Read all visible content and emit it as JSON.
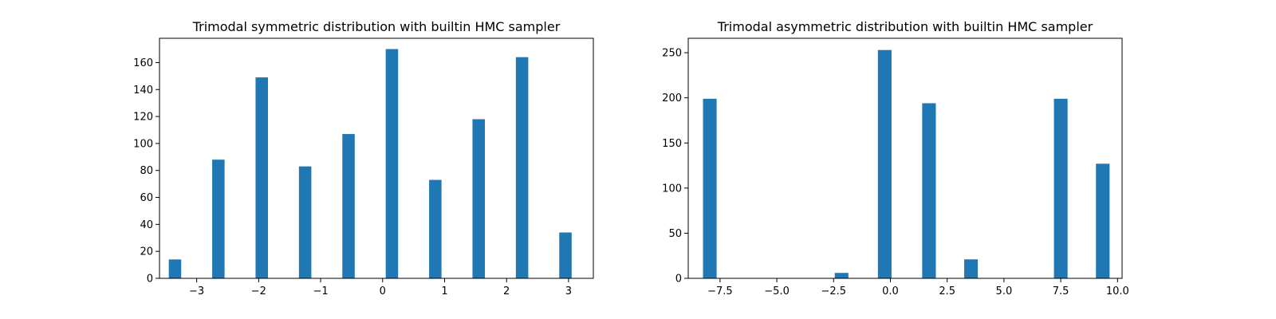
{
  "chart_data": [
    {
      "type": "bar",
      "title": "Trimodal symmetric distribution with builtin HMC sampler",
      "xlabel": "",
      "ylabel": "",
      "xlim": [
        -3.6,
        3.4
      ],
      "ylim": [
        0,
        178
      ],
      "grid": false,
      "color": "#1f77b4",
      "bar_width": 0.2,
      "x": [
        -3.35,
        -2.65,
        -1.95,
        -1.25,
        -0.55,
        0.15,
        0.85,
        1.55,
        2.25,
        2.95
      ],
      "values": [
        14,
        88,
        149,
        83,
        107,
        170,
        73,
        118,
        164,
        34
      ],
      "xticks": [
        -3,
        -2,
        -1,
        0,
        1,
        2,
        3
      ],
      "xtick_labels": [
        "−3",
        "−2",
        "−1",
        "0",
        "1",
        "2",
        "3"
      ],
      "yticks": [
        0,
        20,
        40,
        60,
        80,
        100,
        120,
        140,
        160
      ],
      "ytick_labels": [
        "0",
        "20",
        "40",
        "60",
        "80",
        "100",
        "120",
        "140",
        "160"
      ]
    },
    {
      "type": "bar",
      "title": "Trimodal asymmetric distribution with builtin HMC sampler",
      "xlabel": "",
      "ylabel": "",
      "xlim": [
        -8.9,
        10.2
      ],
      "ylim": [
        0,
        266
      ],
      "grid": false,
      "color": "#1f77b4",
      "bar_width": 0.6,
      "x": [
        -7.95,
        -2.15,
        -0.25,
        1.7,
        3.55,
        7.5,
        9.35
      ],
      "values": [
        199,
        6,
        253,
        194,
        21,
        199,
        127
      ],
      "xticks": [
        -7.5,
        -5.0,
        -2.5,
        0.0,
        2.5,
        5.0,
        7.5,
        10.0
      ],
      "xtick_labels": [
        "−7.5",
        "−5.0",
        "−2.5",
        "0.0",
        "2.5",
        "5.0",
        "7.5",
        "10.0"
      ],
      "yticks": [
        0,
        50,
        100,
        150,
        200,
        250
      ],
      "ytick_labels": [
        "0",
        "50",
        "100",
        "150",
        "200",
        "250"
      ]
    }
  ]
}
